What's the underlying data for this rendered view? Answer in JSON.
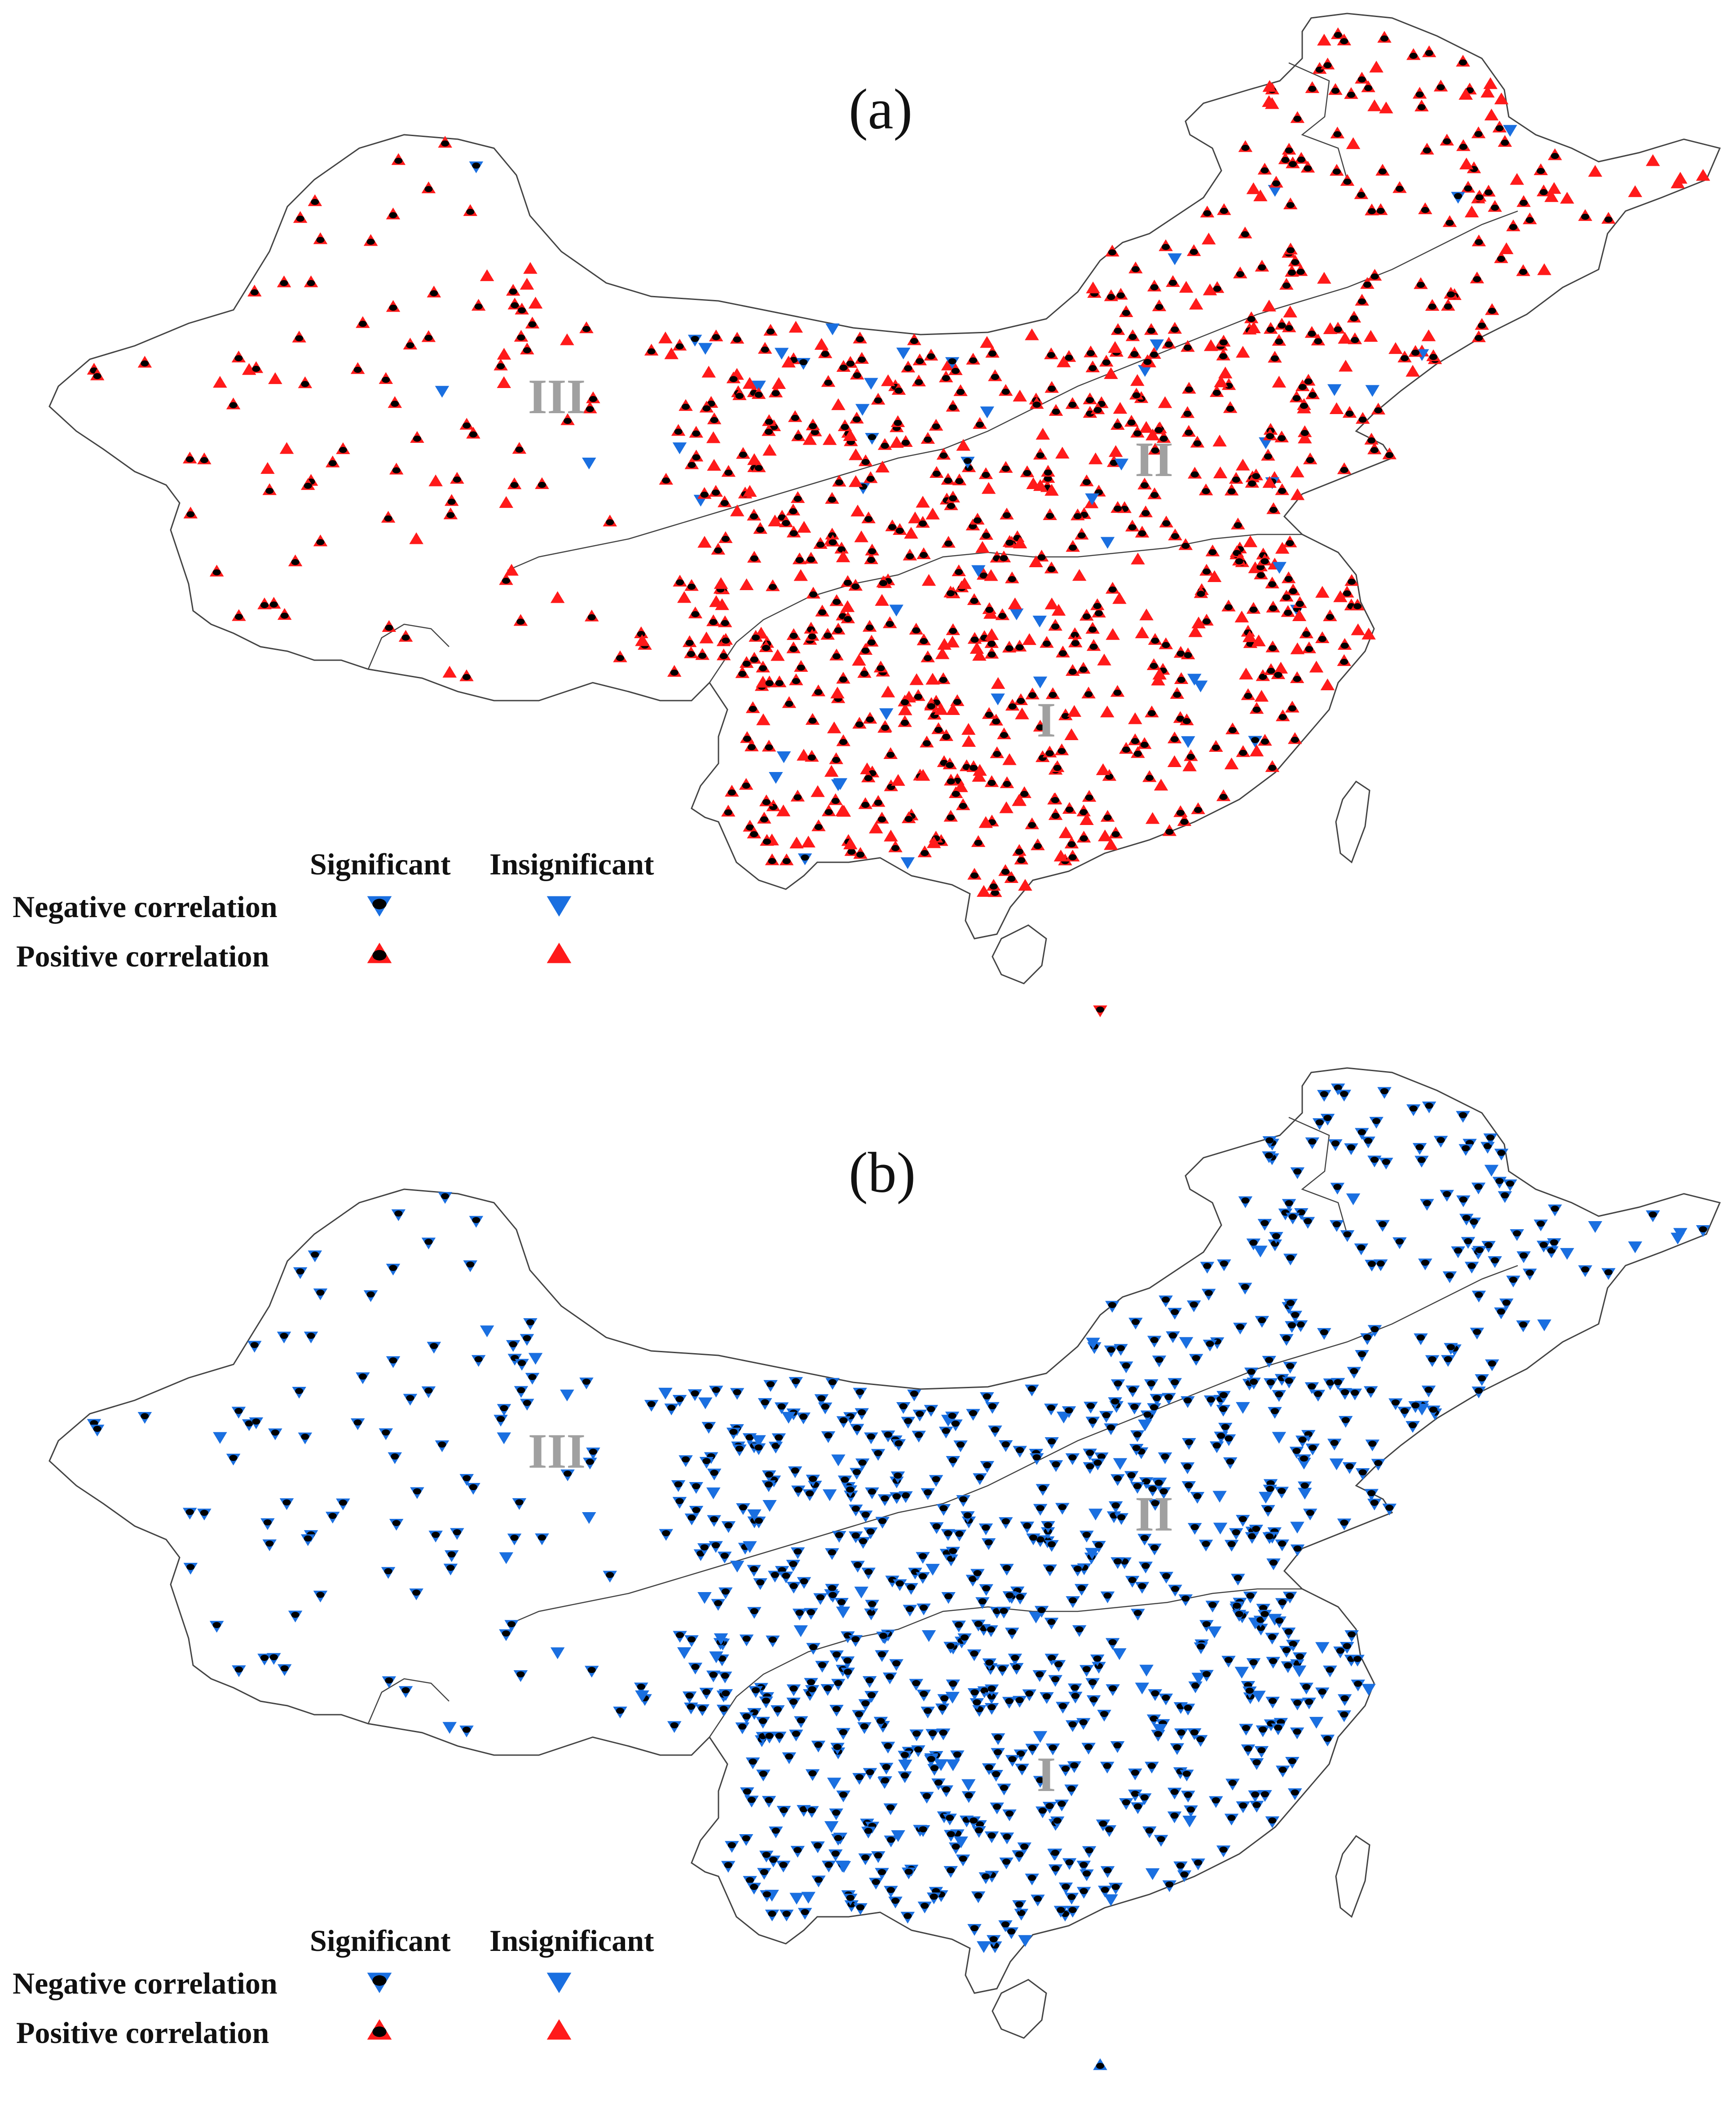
{
  "panels": [
    {
      "label": "(a)",
      "dominant": "positive",
      "minority": "negative"
    },
    {
      "label": "(b)",
      "dominant": "negative",
      "minority": "none"
    }
  ],
  "regions": [
    "I",
    "II",
    "III"
  ],
  "legend": {
    "col_significant": "Significant",
    "col_insignificant": "Insignificant",
    "row_negative": "Negative correlation",
    "row_positive": "Positive correlation"
  },
  "colors": {
    "positive": "#ff1a1a",
    "negative": "#1a6fe0",
    "significant_mark": "#000000",
    "region_label": "#a0a0a0",
    "outline": "#444444"
  }
}
